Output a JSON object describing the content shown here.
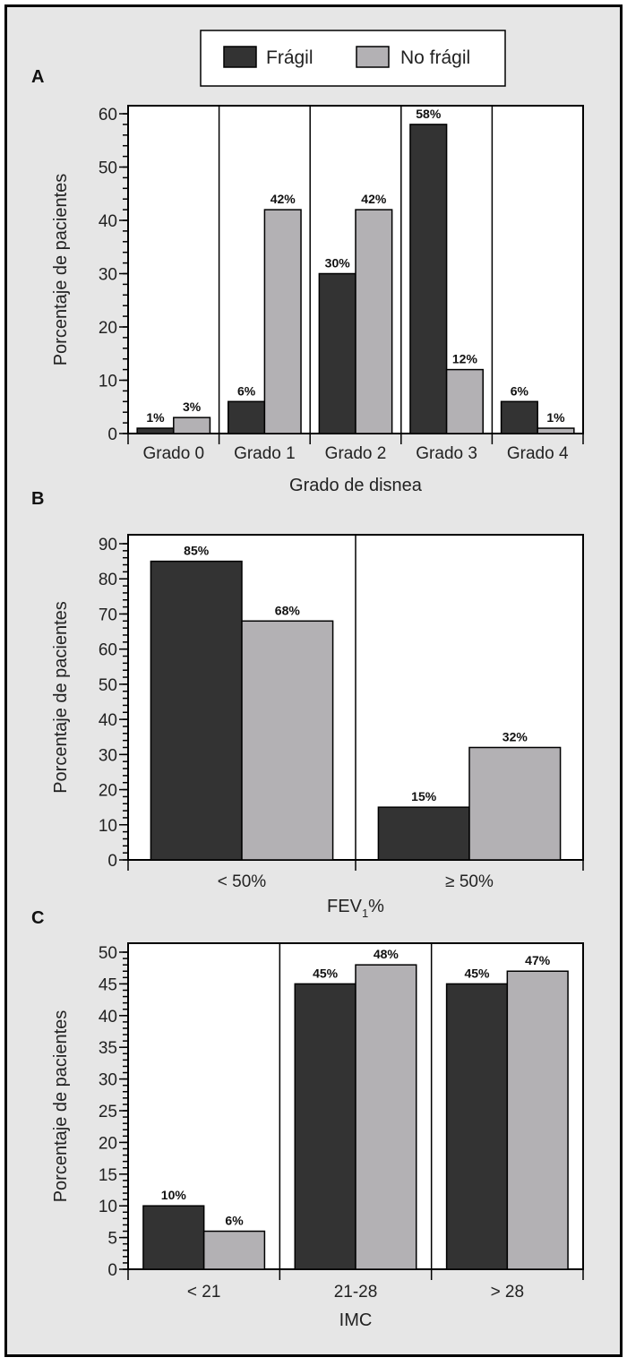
{
  "legend": {
    "items": [
      {
        "label": "Frágil",
        "color": "#333333"
      },
      {
        "label": "No frágil",
        "color": "#b3b1b4"
      }
    ]
  },
  "colors": {
    "background": "#e6e6e6",
    "plot": "#ffffff"
  },
  "chart_data": [
    {
      "type": "bar",
      "panel": "A",
      "categories": [
        "Grado 0",
        "Grado 1",
        "Grado 2",
        "Grado 3",
        "Grado 4"
      ],
      "series": [
        {
          "name": "Frágil",
          "values": [
            1,
            6,
            30,
            58,
            6
          ],
          "labels": [
            "1%",
            "6%",
            "30%",
            "58%",
            "6%"
          ]
        },
        {
          "name": "No frágil",
          "values": [
            3,
            42,
            42,
            12,
            1
          ],
          "labels": [
            "3%",
            "42%",
            "42%",
            "12%",
            "1%"
          ]
        }
      ],
      "xlabel": "Grado de disnea",
      "ylabel": "Porcentaje de pacientes",
      "ylim": [
        0,
        60
      ],
      "yticks": [
        0,
        10,
        20,
        30,
        40,
        50,
        60
      ],
      "minor_step": 2
    },
    {
      "type": "bar",
      "panel": "B",
      "categories": [
        "< 50%",
        "≥ 50%"
      ],
      "series": [
        {
          "name": "Frágil",
          "values": [
            85,
            15
          ],
          "labels": [
            "85%",
            "15%"
          ]
        },
        {
          "name": "No frágil",
          "values": [
            68,
            32
          ],
          "labels": [
            "68%",
            "32%"
          ]
        }
      ],
      "xlabel": "FEV",
      "xlabel_sub": "1",
      "xlabel_suffix": "%",
      "ylabel": "Porcentaje de pacientes",
      "ylim": [
        0,
        90
      ],
      "yticks": [
        0,
        10,
        20,
        30,
        40,
        50,
        60,
        70,
        80,
        90
      ],
      "minor_step": 2
    },
    {
      "type": "bar",
      "panel": "C",
      "categories": [
        "< 21",
        "21-28",
        "> 28"
      ],
      "series": [
        {
          "name": "Frágil",
          "values": [
            10,
            45,
            45
          ],
          "labels": [
            "10%",
            "45%",
            "45%"
          ]
        },
        {
          "name": "No frágil",
          "values": [
            6,
            48,
            47
          ],
          "labels": [
            "6%",
            "48%",
            "47%"
          ]
        }
      ],
      "xlabel": "IMC",
      "ylabel": "Porcentaje de pacientes",
      "ylim": [
        0,
        50
      ],
      "yticks": [
        0,
        5,
        10,
        15,
        20,
        25,
        30,
        35,
        40,
        45,
        50
      ],
      "minor_step": 1
    }
  ]
}
